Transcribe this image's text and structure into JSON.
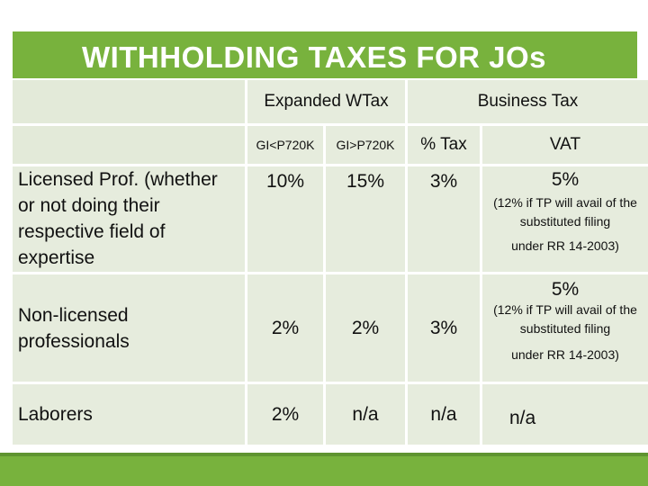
{
  "title": "WITHHOLDING TAXES FOR JOs",
  "headers": {
    "expanded": "Expanded WTax",
    "business": "Business Tax",
    "gi_low": "GI<P720K",
    "gi_high": "GI>P720K",
    "pct_tax": "% Tax",
    "vat": "VAT"
  },
  "rows": [
    {
      "label": "Licensed Prof. (whether or not doing their respective field of expertise",
      "gi_low": "10%",
      "gi_high": "15%",
      "pct_tax": "3%",
      "vat": "5%",
      "vat_note_1": "(12% if TP will avail of the substituted filing",
      "vat_note_2": "under RR 14-2003)"
    },
    {
      "label": "Non-licensed professionals",
      "gi_low": "2%",
      "gi_high": "2%",
      "pct_tax": "3%",
      "vat": "5%",
      "vat_note_1": "(12% if TP will avail of the substituted filing",
      "vat_note_2": "under RR 14-2003)"
    },
    {
      "label": "Laborers",
      "gi_low": "2%",
      "gi_high": "n/a",
      "pct_tax": "n/a",
      "vat": "n/a"
    }
  ],
  "colors": {
    "accent_green": "#78b23d",
    "cell_fill": "#e6ecdd"
  }
}
